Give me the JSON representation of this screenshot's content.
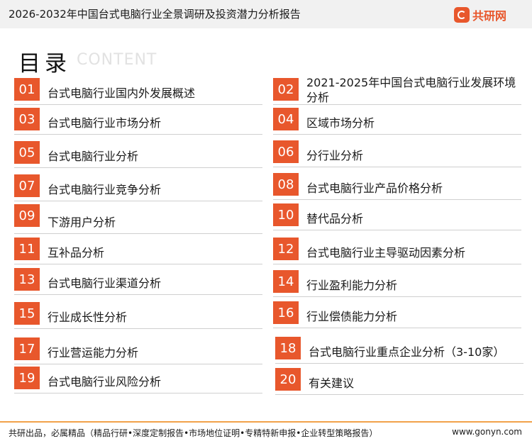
{
  "header": {
    "report_title": "2026-2032年中国台式电脑行业全景调研及投资潜力分析报告",
    "logo_text": "共研网",
    "logo_icon": "gonyn-logo-icon",
    "accent_color": "#e8572c"
  },
  "toc": {
    "heading": "目录",
    "heading_en": "CONTENT",
    "items": [
      {
        "num": "01",
        "label": "台式电脑行业国内外发展概述"
      },
      {
        "num": "02",
        "label": "2021-2025年中国台式电脑行业发展环境分析"
      },
      {
        "num": "03",
        "label": "台式电脑行业市场分析"
      },
      {
        "num": "04",
        "label": "区域市场分析"
      },
      {
        "num": "05",
        "label": "台式电脑行业分析"
      },
      {
        "num": "06",
        "label": "分行业分析"
      },
      {
        "num": "07",
        "label": "台式电脑行业竞争分析"
      },
      {
        "num": "08",
        "label": "台式电脑行业产品价格分析"
      },
      {
        "num": "09",
        "label": "下游用户分析"
      },
      {
        "num": "10",
        "label": "替代品分析"
      },
      {
        "num": "11",
        "label": "互补品分析"
      },
      {
        "num": "12",
        "label": "台式电脑行业主导驱动因素分析"
      },
      {
        "num": "13",
        "label": "台式电脑行业渠道分析"
      },
      {
        "num": "14",
        "label": "行业盈利能力分析"
      },
      {
        "num": "15",
        "label": "行业成长性分析"
      },
      {
        "num": "16",
        "label": "行业偿债能力分析"
      },
      {
        "num": "17",
        "label": "行业营运能力分析"
      },
      {
        "num": "18",
        "label": "台式电脑行业重点企业分析（3-10家）"
      },
      {
        "num": "19",
        "label": "台式电脑行业风险分析"
      },
      {
        "num": "20",
        "label": "有关建议"
      }
    ]
  },
  "footer": {
    "left_text": "共研出品，必属精品（精品行研•深度定制报告•市场地位证明•专精特新申报•企业转型策略报告）",
    "right_text": "www.gonyn.com"
  }
}
